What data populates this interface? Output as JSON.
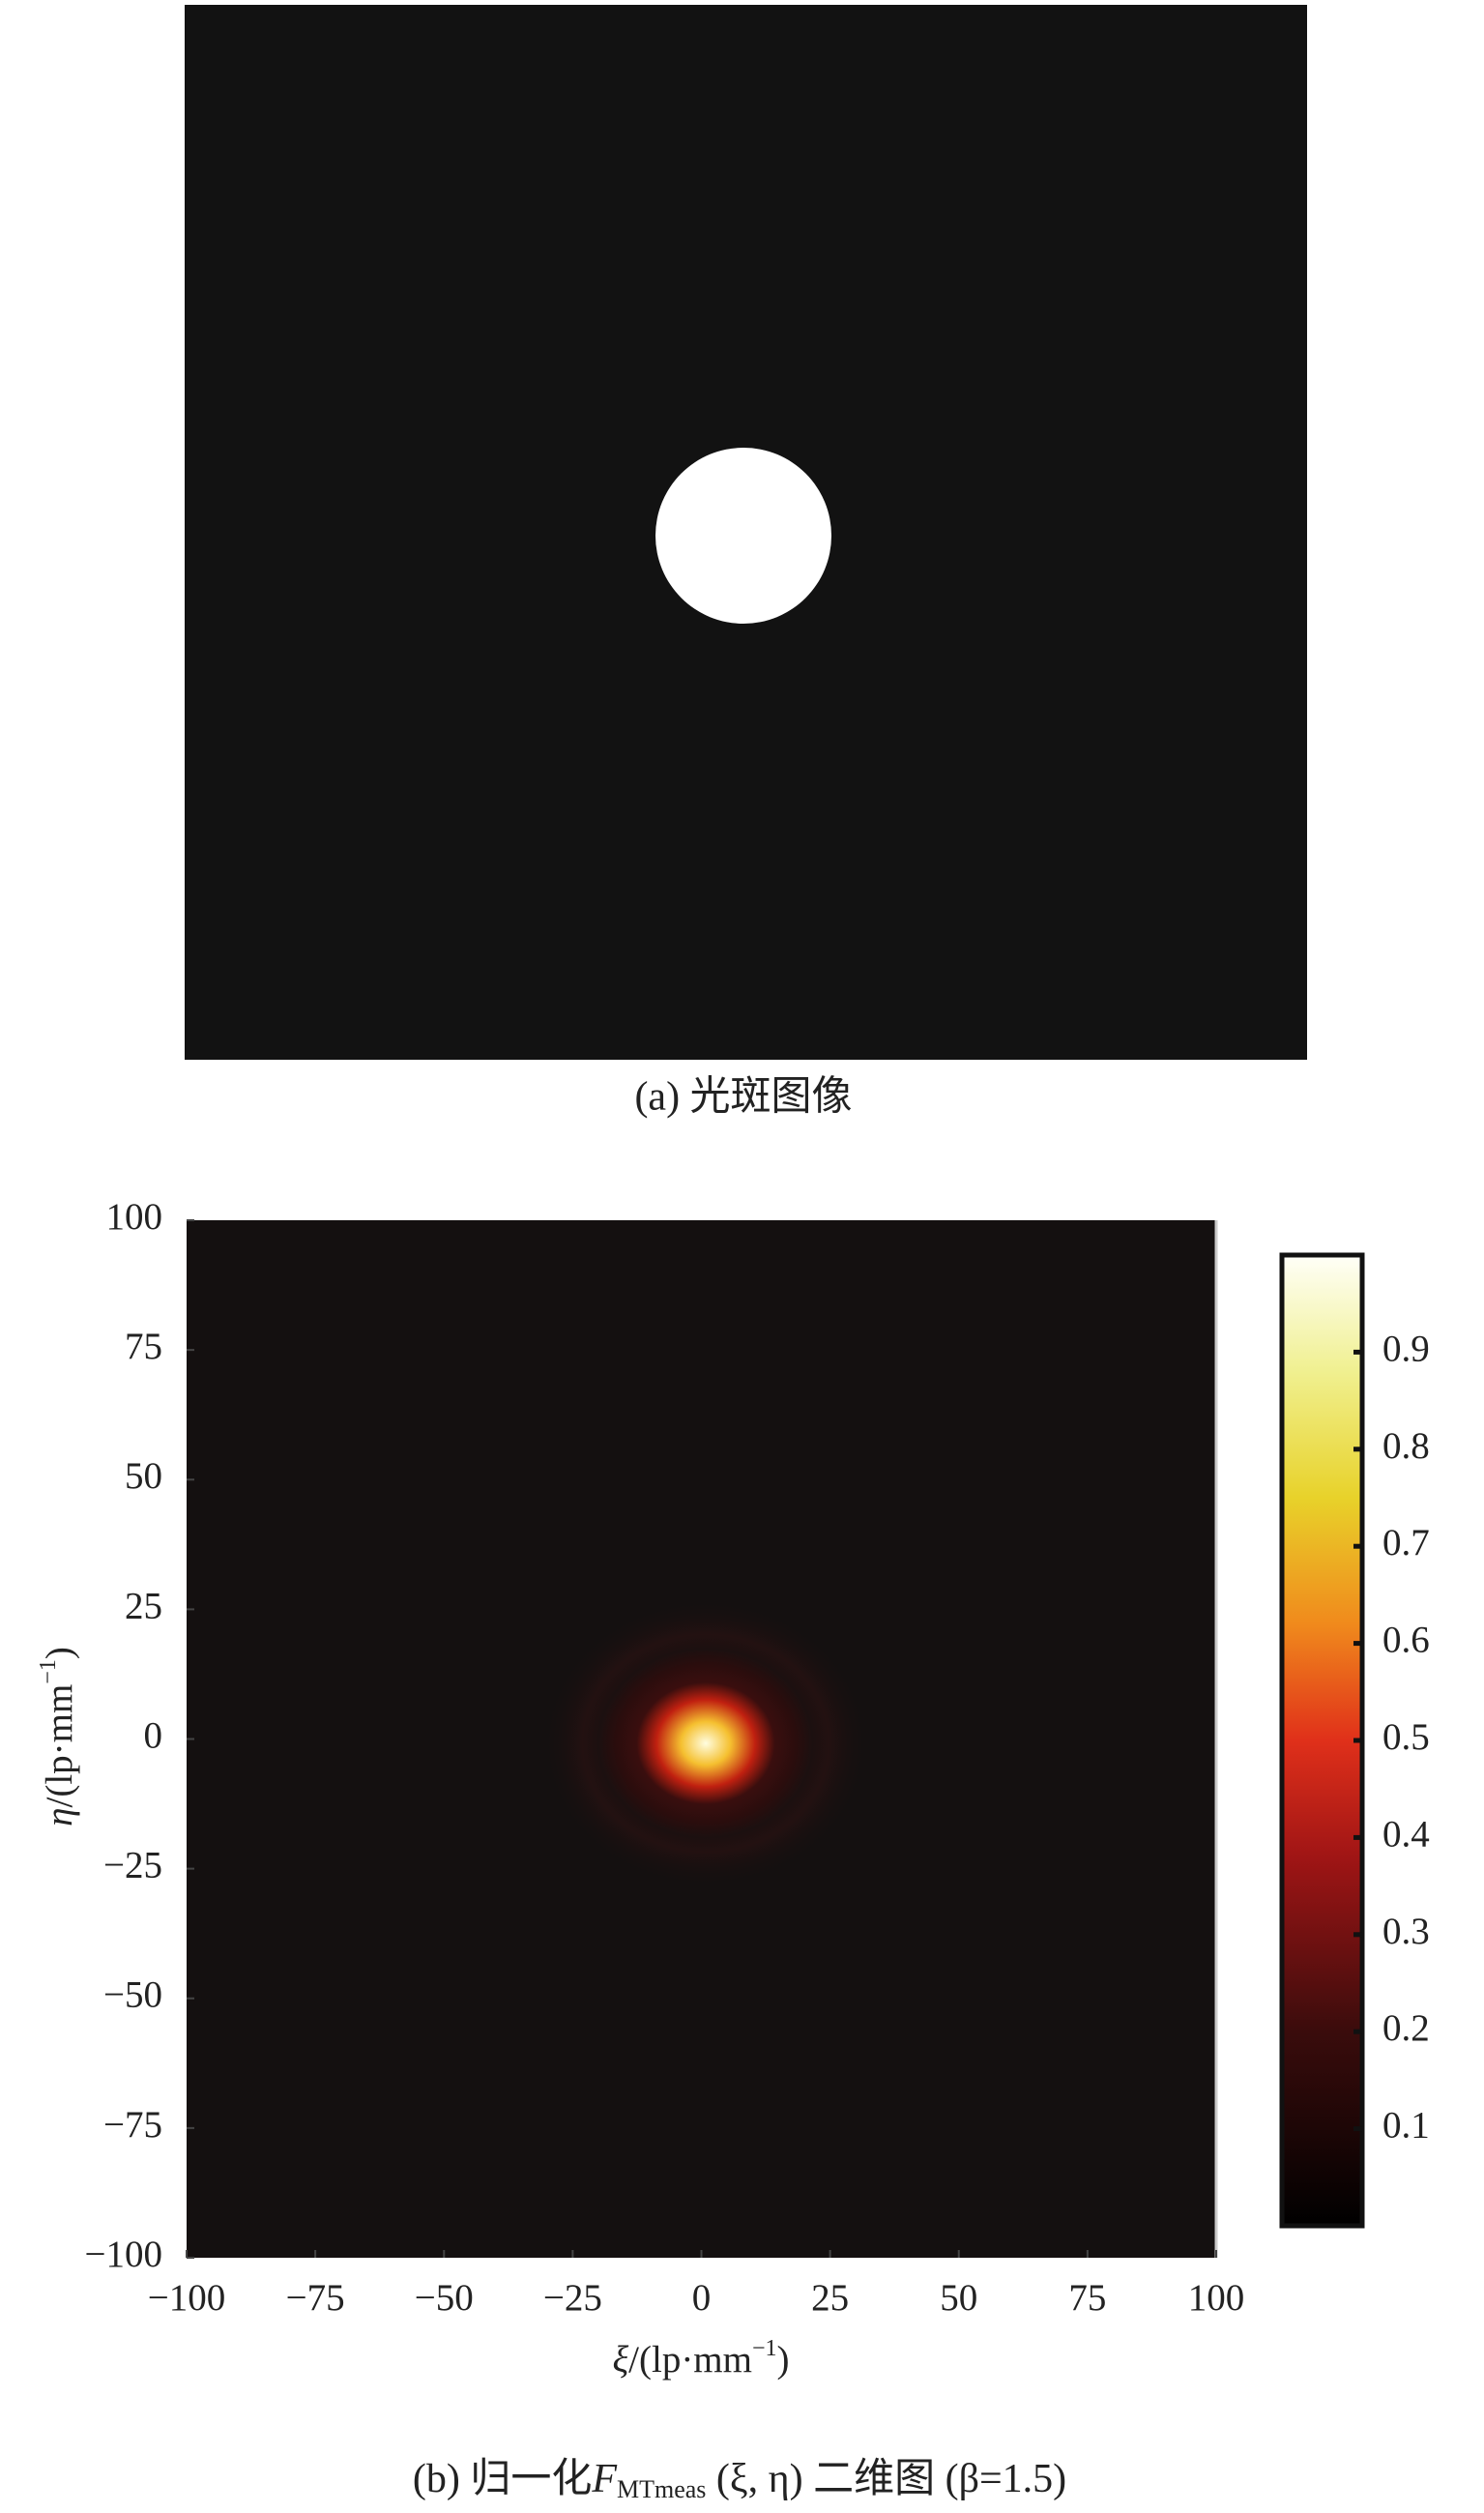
{
  "panel_a": {
    "caption": "(a) 光斑图像"
  },
  "chart_data": {
    "type": "heatmap",
    "xlabel": {
      "symbol": "ξ",
      "unit": "/(lp·mm",
      "exponent": "−1",
      "close": ")"
    },
    "ylabel": {
      "symbol": "η",
      "unit": "/(lp·mm",
      "exponent": "−1",
      "close": ")"
    },
    "caption": {
      "prefix": "(b) 归一化",
      "symbol": "F",
      "subscript": "MTmeas",
      "suffix": " (ξ, η) 二维图 (β=1.5)"
    },
    "xlim": [
      -100,
      100
    ],
    "ylim": [
      -100,
      100
    ],
    "xticks": [
      {
        "value": -100,
        "label": "−100"
      },
      {
        "value": -75,
        "label": "−75"
      },
      {
        "value": -50,
        "label": "−50"
      },
      {
        "value": -25,
        "label": "−25"
      },
      0,
      25,
      50,
      75,
      100
    ],
    "yticks": [
      {
        "value": -100,
        "label": "−100"
      },
      {
        "value": -75,
        "label": "−75"
      },
      {
        "value": -50,
        "label": "−50"
      },
      {
        "value": -25,
        "label": "−25"
      },
      0,
      25,
      50,
      75,
      100
    ],
    "colorbar": {
      "lim": [
        0,
        1
      ],
      "ticks": [
        0.1,
        0.2,
        0.3,
        0.4,
        0.5,
        0.6,
        0.7,
        0.8,
        0.9
      ]
    }
  }
}
